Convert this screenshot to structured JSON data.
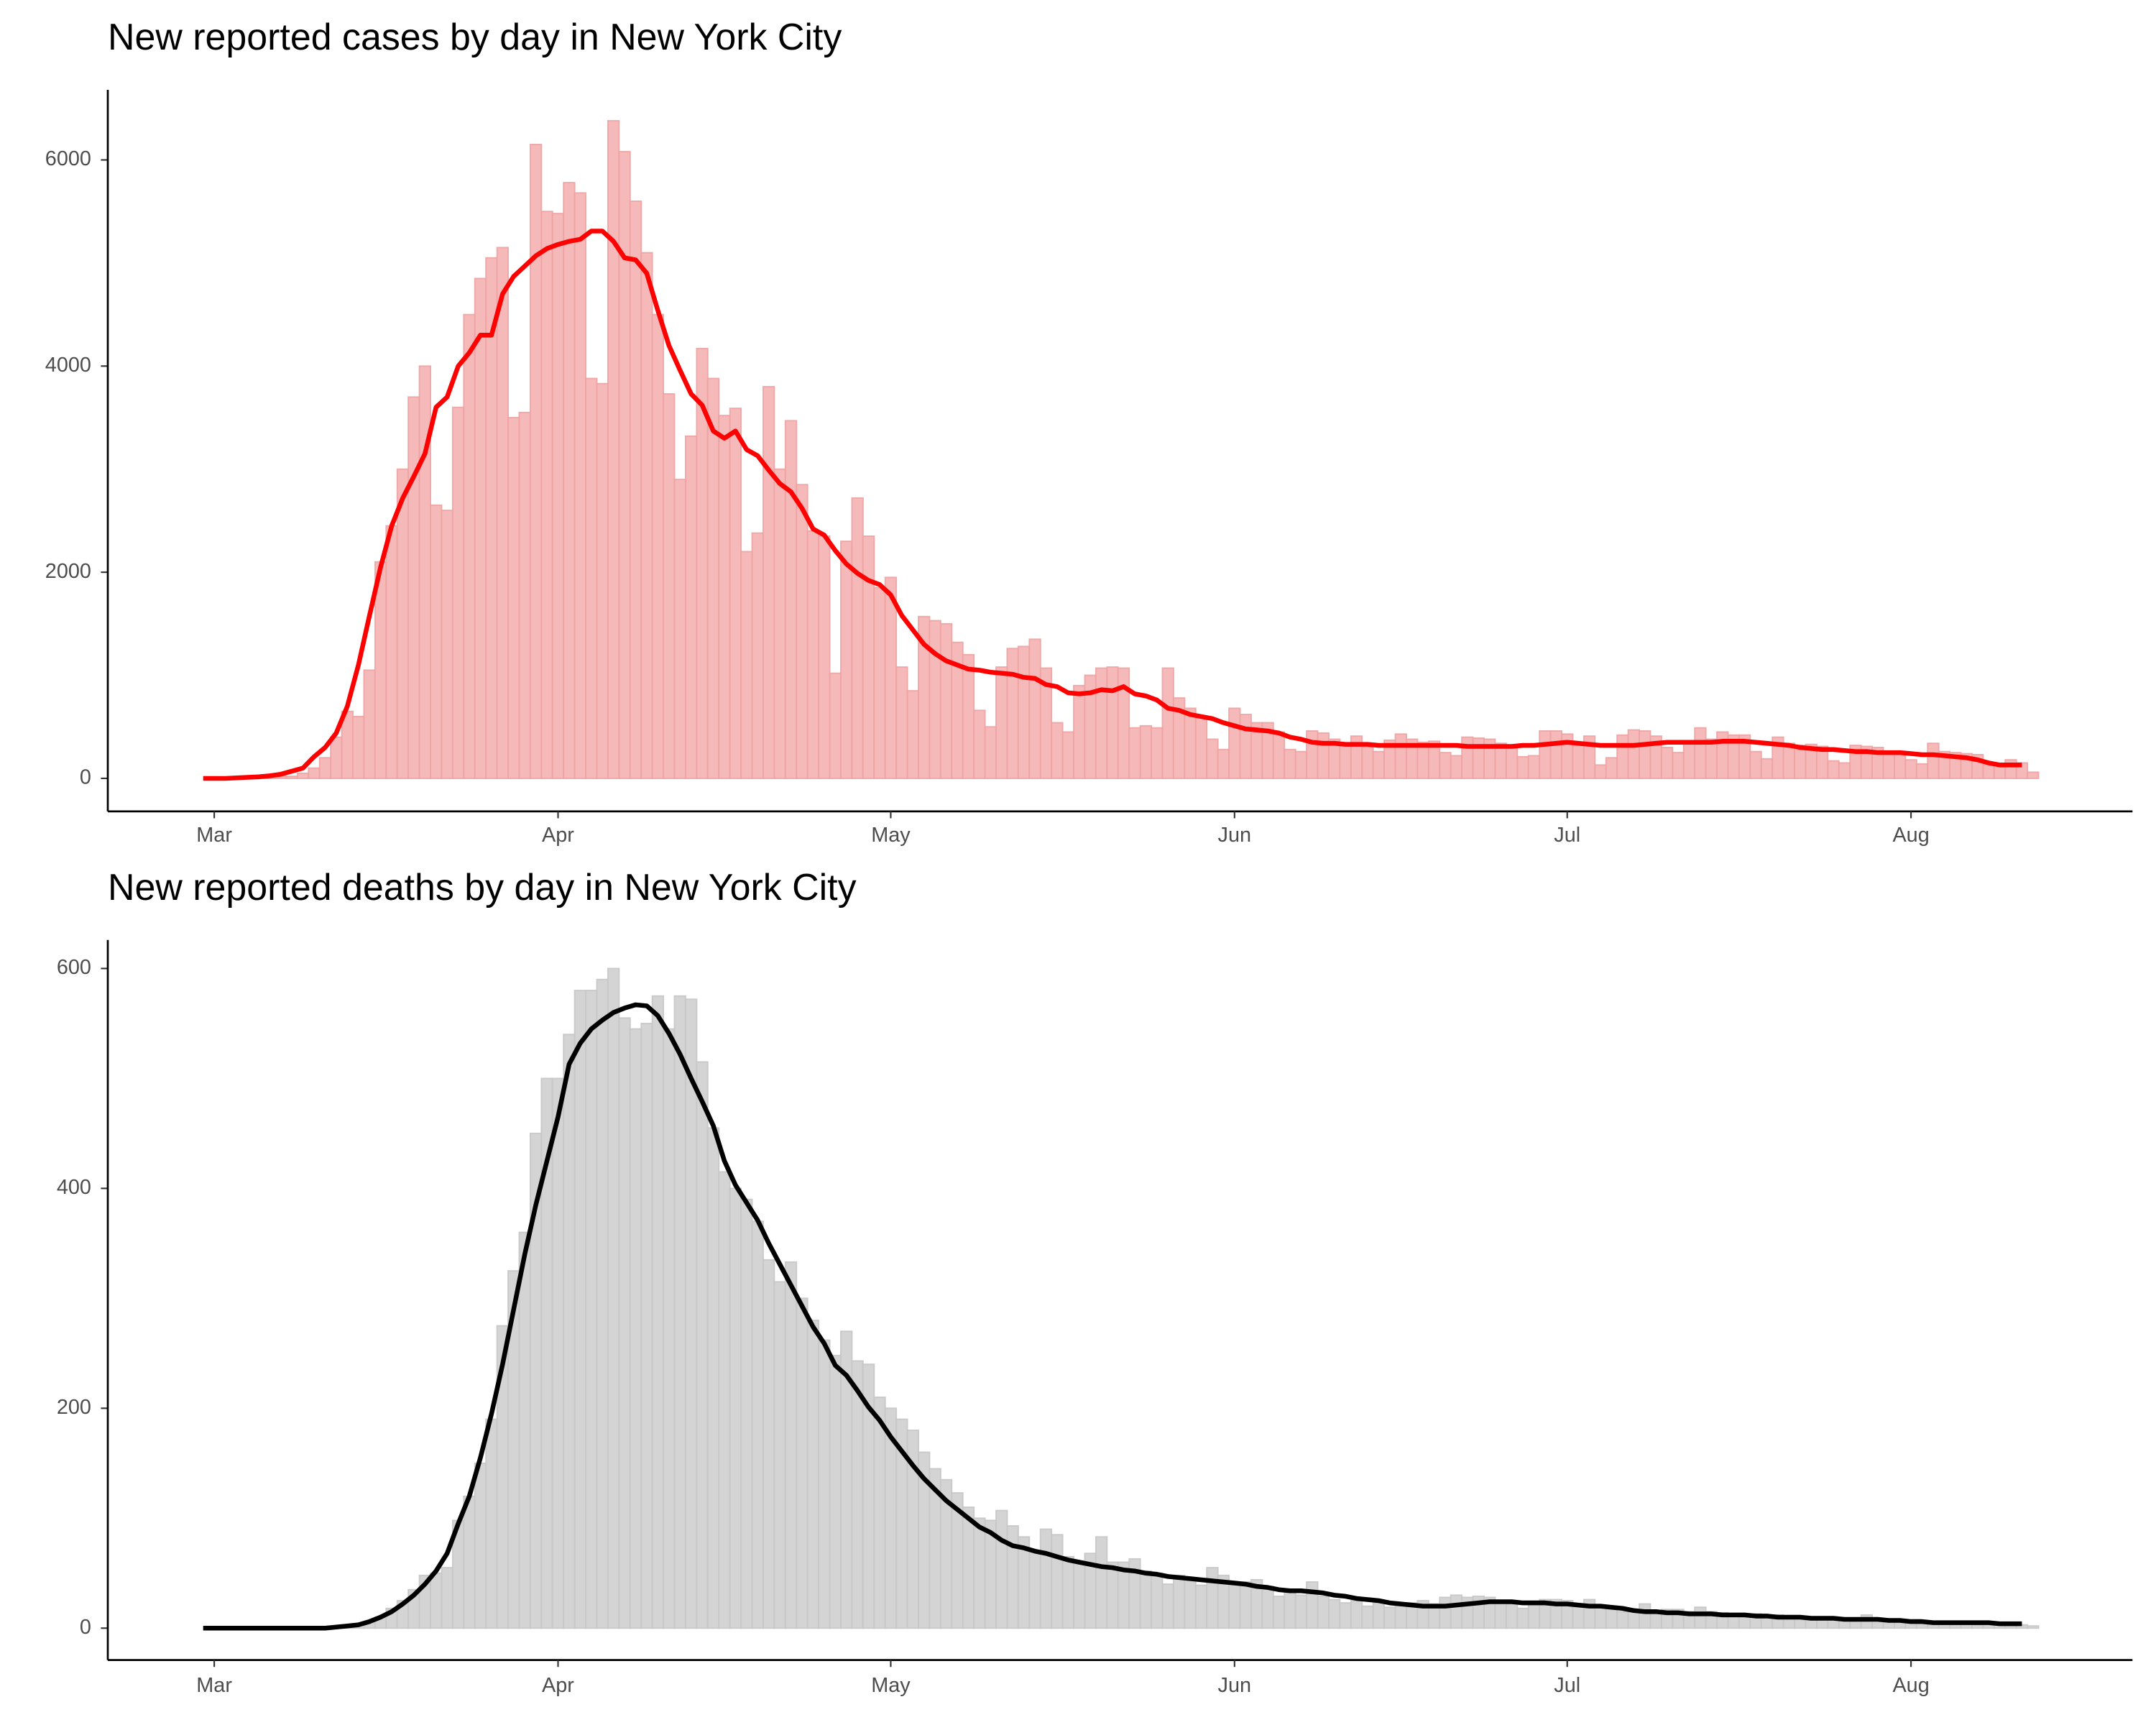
{
  "chart_data": [
    {
      "type": "bar",
      "title": "New reported cases by day in New York City",
      "categories": [
        null,
        "Mar",
        null,
        null,
        null,
        null,
        null,
        null,
        null,
        null,
        null,
        null,
        null,
        null,
        null,
        null,
        null,
        null,
        null,
        null,
        null,
        null,
        null,
        null,
        null,
        null,
        null,
        null,
        null,
        null,
        null,
        null,
        "Apr",
        null,
        null,
        null,
        null,
        null,
        null,
        null,
        null,
        null,
        null,
        null,
        null,
        null,
        null,
        null,
        null,
        null,
        null,
        null,
        null,
        null,
        null,
        null,
        null,
        null,
        null,
        null,
        null,
        null,
        "May",
        null,
        null,
        null,
        null,
        null,
        null,
        null,
        null,
        null,
        null,
        null,
        null,
        null,
        null,
        null,
        null,
        null,
        null,
        null,
        null,
        null,
        null,
        null,
        null,
        null,
        null,
        null,
        null,
        null,
        null,
        "Jun",
        null,
        null,
        null,
        null,
        null,
        null,
        null,
        null,
        null,
        null,
        null,
        null,
        null,
        null,
        null,
        null,
        null,
        null,
        null,
        null,
        null,
        null,
        null,
        null,
        null,
        null,
        null,
        null,
        null,
        "Jul",
        null,
        null,
        null,
        null,
        null,
        null,
        null,
        null,
        null,
        null,
        null,
        null,
        null,
        null,
        null,
        null,
        null,
        null,
        null,
        null,
        null,
        null,
        null,
        null,
        null,
        null,
        null,
        null,
        null,
        null,
        "Aug",
        null,
        null,
        null,
        null,
        null,
        null,
        null,
        null,
        null,
        null,
        null
      ],
      "series": [
        {
          "type": "bar",
          "color": "#f6b9b9",
          "outline": "#eea3a3",
          "values": [
            0,
            0,
            1,
            2,
            3,
            5,
            10,
            20,
            20,
            50,
            100,
            200,
            400,
            650,
            600,
            1050,
            2100,
            2450,
            3000,
            3700,
            4000,
            2650,
            2600,
            3600,
            4500,
            4850,
            5050,
            5150,
            3500,
            3550,
            6150,
            5500,
            5480,
            5780,
            5680,
            3880,
            3830,
            6380,
            6080,
            5600,
            5100,
            4500,
            3730,
            2900,
            3320,
            4170,
            3880,
            3520,
            3590,
            2200,
            2380,
            3800,
            3000,
            3470,
            2850,
            2400,
            2350,
            1020,
            2300,
            2720,
            2350,
            1850,
            1950,
            1080,
            850,
            1570,
            1530,
            1500,
            1320,
            1200,
            660,
            500,
            1080,
            1260,
            1280,
            1350,
            1070,
            540,
            450,
            900,
            1000,
            1070,
            1080,
            1070,
            490,
            510,
            490,
            1070,
            780,
            680,
            600,
            380,
            280,
            680,
            620,
            540,
            540,
            450,
            280,
            260,
            460,
            440,
            380,
            330,
            410,
            300,
            260,
            370,
            430,
            380,
            350,
            360,
            250,
            220,
            400,
            390,
            380,
            340,
            300,
            210,
            220,
            460,
            460,
            430,
            350,
            410,
            130,
            200,
            420,
            470,
            460,
            410,
            300,
            250,
            340,
            490,
            380,
            450,
            420,
            420,
            260,
            190,
            400,
            340,
            320,
            330,
            310,
            170,
            150,
            320,
            310,
            300,
            260,
            250,
            180,
            140,
            340,
            260,
            250,
            240,
            230,
            130,
            120,
            180,
            150,
            60
          ]
        },
        {
          "type": "line",
          "color": "#ff0000",
          "values": [
            0,
            0,
            0,
            5,
            10,
            15,
            25,
            40,
            70,
            100,
            210,
            300,
            440,
            700,
            1100,
            1580,
            2050,
            2450,
            2720,
            2930,
            3150,
            3600,
            3700,
            4000,
            4130,
            4300,
            4300,
            4700,
            4870,
            4970,
            5070,
            5140,
            5180,
            5210,
            5230,
            5310,
            5310,
            5210,
            5050,
            5030,
            4900,
            4540,
            4200,
            3960,
            3730,
            3620,
            3370,
            3300,
            3370,
            3190,
            3130,
            2990,
            2860,
            2780,
            2620,
            2420,
            2360,
            2210,
            2080,
            1990,
            1920,
            1880,
            1780,
            1580,
            1440,
            1300,
            1210,
            1140,
            1100,
            1060,
            1050,
            1030,
            1020,
            1010,
            980,
            970,
            910,
            890,
            830,
            820,
            830,
            860,
            850,
            890,
            820,
            800,
            760,
            680,
            660,
            620,
            600,
            580,
            540,
            510,
            480,
            470,
            460,
            440,
            400,
            380,
            350,
            340,
            340,
            330,
            330,
            330,
            320,
            320,
            320,
            320,
            320,
            320,
            320,
            320,
            310,
            310,
            310,
            310,
            310,
            320,
            320,
            330,
            340,
            350,
            340,
            330,
            320,
            320,
            320,
            320,
            330,
            340,
            350,
            350,
            350,
            350,
            350,
            360,
            360,
            360,
            350,
            340,
            330,
            320,
            300,
            290,
            280,
            280,
            270,
            260,
            260,
            250,
            250,
            250,
            240,
            230,
            230,
            220,
            210,
            200,
            180,
            150,
            130,
            130,
            130,
            null
          ]
        }
      ],
      "ylim": [
        -320,
        6680
      ],
      "yticks": [
        0,
        2000,
        4000,
        6000
      ]
    },
    {
      "type": "bar",
      "title": "New reported deaths by day in New York City",
      "categories": [
        null,
        "Mar",
        null,
        null,
        null,
        null,
        null,
        null,
        null,
        null,
        null,
        null,
        null,
        null,
        null,
        null,
        null,
        null,
        null,
        null,
        null,
        null,
        null,
        null,
        null,
        null,
        null,
        null,
        null,
        null,
        null,
        null,
        "Apr",
        null,
        null,
        null,
        null,
        null,
        null,
        null,
        null,
        null,
        null,
        null,
        null,
        null,
        null,
        null,
        null,
        null,
        null,
        null,
        null,
        null,
        null,
        null,
        null,
        null,
        null,
        null,
        null,
        null,
        "May",
        null,
        null,
        null,
        null,
        null,
        null,
        null,
        null,
        null,
        null,
        null,
        null,
        null,
        null,
        null,
        null,
        null,
        null,
        null,
        null,
        null,
        null,
        null,
        null,
        null,
        null,
        null,
        null,
        null,
        null,
        "Jun",
        null,
        null,
        null,
        null,
        null,
        null,
        null,
        null,
        null,
        null,
        null,
        null,
        null,
        null,
        null,
        null,
        null,
        null,
        null,
        null,
        null,
        null,
        null,
        null,
        null,
        null,
        null,
        null,
        null,
        "Jul",
        null,
        null,
        null,
        null,
        null,
        null,
        null,
        null,
        null,
        null,
        null,
        null,
        null,
        null,
        null,
        null,
        null,
        null,
        null,
        null,
        null,
        null,
        null,
        null,
        null,
        null,
        null,
        null,
        null,
        null,
        "Aug",
        null,
        null,
        null,
        null,
        null,
        null,
        null,
        null,
        null,
        null,
        null
      ],
      "series": [
        {
          "type": "bar",
          "color": "#d4d4d4",
          "outline": "#c6c6c6",
          "values": [
            0,
            0,
            0,
            0,
            0,
            0,
            0,
            0,
            0,
            0,
            0,
            0,
            0,
            2,
            4,
            6,
            10,
            18,
            25,
            35,
            48,
            50,
            55,
            98,
            120,
            150,
            190,
            275,
            325,
            360,
            450,
            500,
            500,
            540,
            580,
            580,
            590,
            600,
            555,
            545,
            550,
            575,
            545,
            575,
            572,
            515,
            455,
            415,
            400,
            390,
            370,
            335,
            315,
            333,
            300,
            280,
            262,
            248,
            270,
            243,
            240,
            210,
            200,
            190,
            180,
            160,
            145,
            135,
            123,
            110,
            100,
            98,
            107,
            93,
            83,
            70,
            90,
            85,
            65,
            60,
            68,
            83,
            60,
            60,
            63,
            52,
            50,
            40,
            48,
            45,
            39,
            55,
            48,
            40,
            42,
            44,
            38,
            29,
            35,
            30,
            42,
            29,
            26,
            23,
            25,
            20,
            23,
            19,
            23,
            23,
            25,
            22,
            28,
            30,
            28,
            29,
            28,
            25,
            22,
            18,
            22,
            26,
            26,
            25,
            22,
            26,
            19,
            20,
            15,
            17,
            22,
            15,
            17,
            17,
            15,
            19,
            15,
            14,
            13,
            12,
            13,
            11,
            12,
            10,
            10,
            10,
            9,
            8,
            9,
            8,
            12,
            8,
            7,
            6,
            5,
            5,
            4,
            5,
            4,
            4,
            3,
            4,
            3,
            4,
            3,
            2
          ]
        },
        {
          "type": "line",
          "color": "#000000",
          "values": [
            0,
            0,
            0,
            0,
            0,
            0,
            0,
            0,
            0,
            0,
            0,
            0,
            1,
            2,
            3,
            6,
            10,
            15,
            22,
            30,
            40,
            52,
            68,
            95,
            120,
            155,
            195,
            240,
            290,
            340,
            385,
            425,
            465,
            513,
            532,
            545,
            553,
            560,
            564,
            567,
            566,
            557,
            541,
            522,
            500,
            479,
            457,
            425,
            403,
            387,
            371,
            350,
            331,
            312,
            293,
            274,
            259,
            239,
            230,
            216,
            201,
            189,
            174,
            161,
            148,
            136,
            126,
            116,
            108,
            100,
            92,
            87,
            80,
            75,
            73,
            70,
            68,
            65,
            62,
            60,
            58,
            56,
            55,
            53,
            52,
            50,
            49,
            47,
            46,
            45,
            44,
            43,
            42,
            41,
            40,
            38,
            37,
            35,
            34,
            34,
            33,
            32,
            30,
            29,
            27,
            26,
            25,
            23,
            22,
            21,
            20,
            20,
            20,
            21,
            22,
            23,
            24,
            24,
            24,
            23,
            23,
            23,
            22,
            22,
            21,
            20,
            20,
            19,
            18,
            16,
            15,
            15,
            14,
            14,
            13,
            13,
            13,
            12,
            12,
            12,
            11,
            11,
            10,
            10,
            10,
            9,
            9,
            9,
            8,
            8,
            8,
            8,
            7,
            7,
            6,
            6,
            5,
            5,
            5,
            5,
            5,
            5,
            4,
            4,
            4,
            null
          ]
        }
      ],
      "ylim": [
        -29,
        626
      ],
      "yticks": [
        0,
        200,
        400,
        600
      ]
    }
  ]
}
